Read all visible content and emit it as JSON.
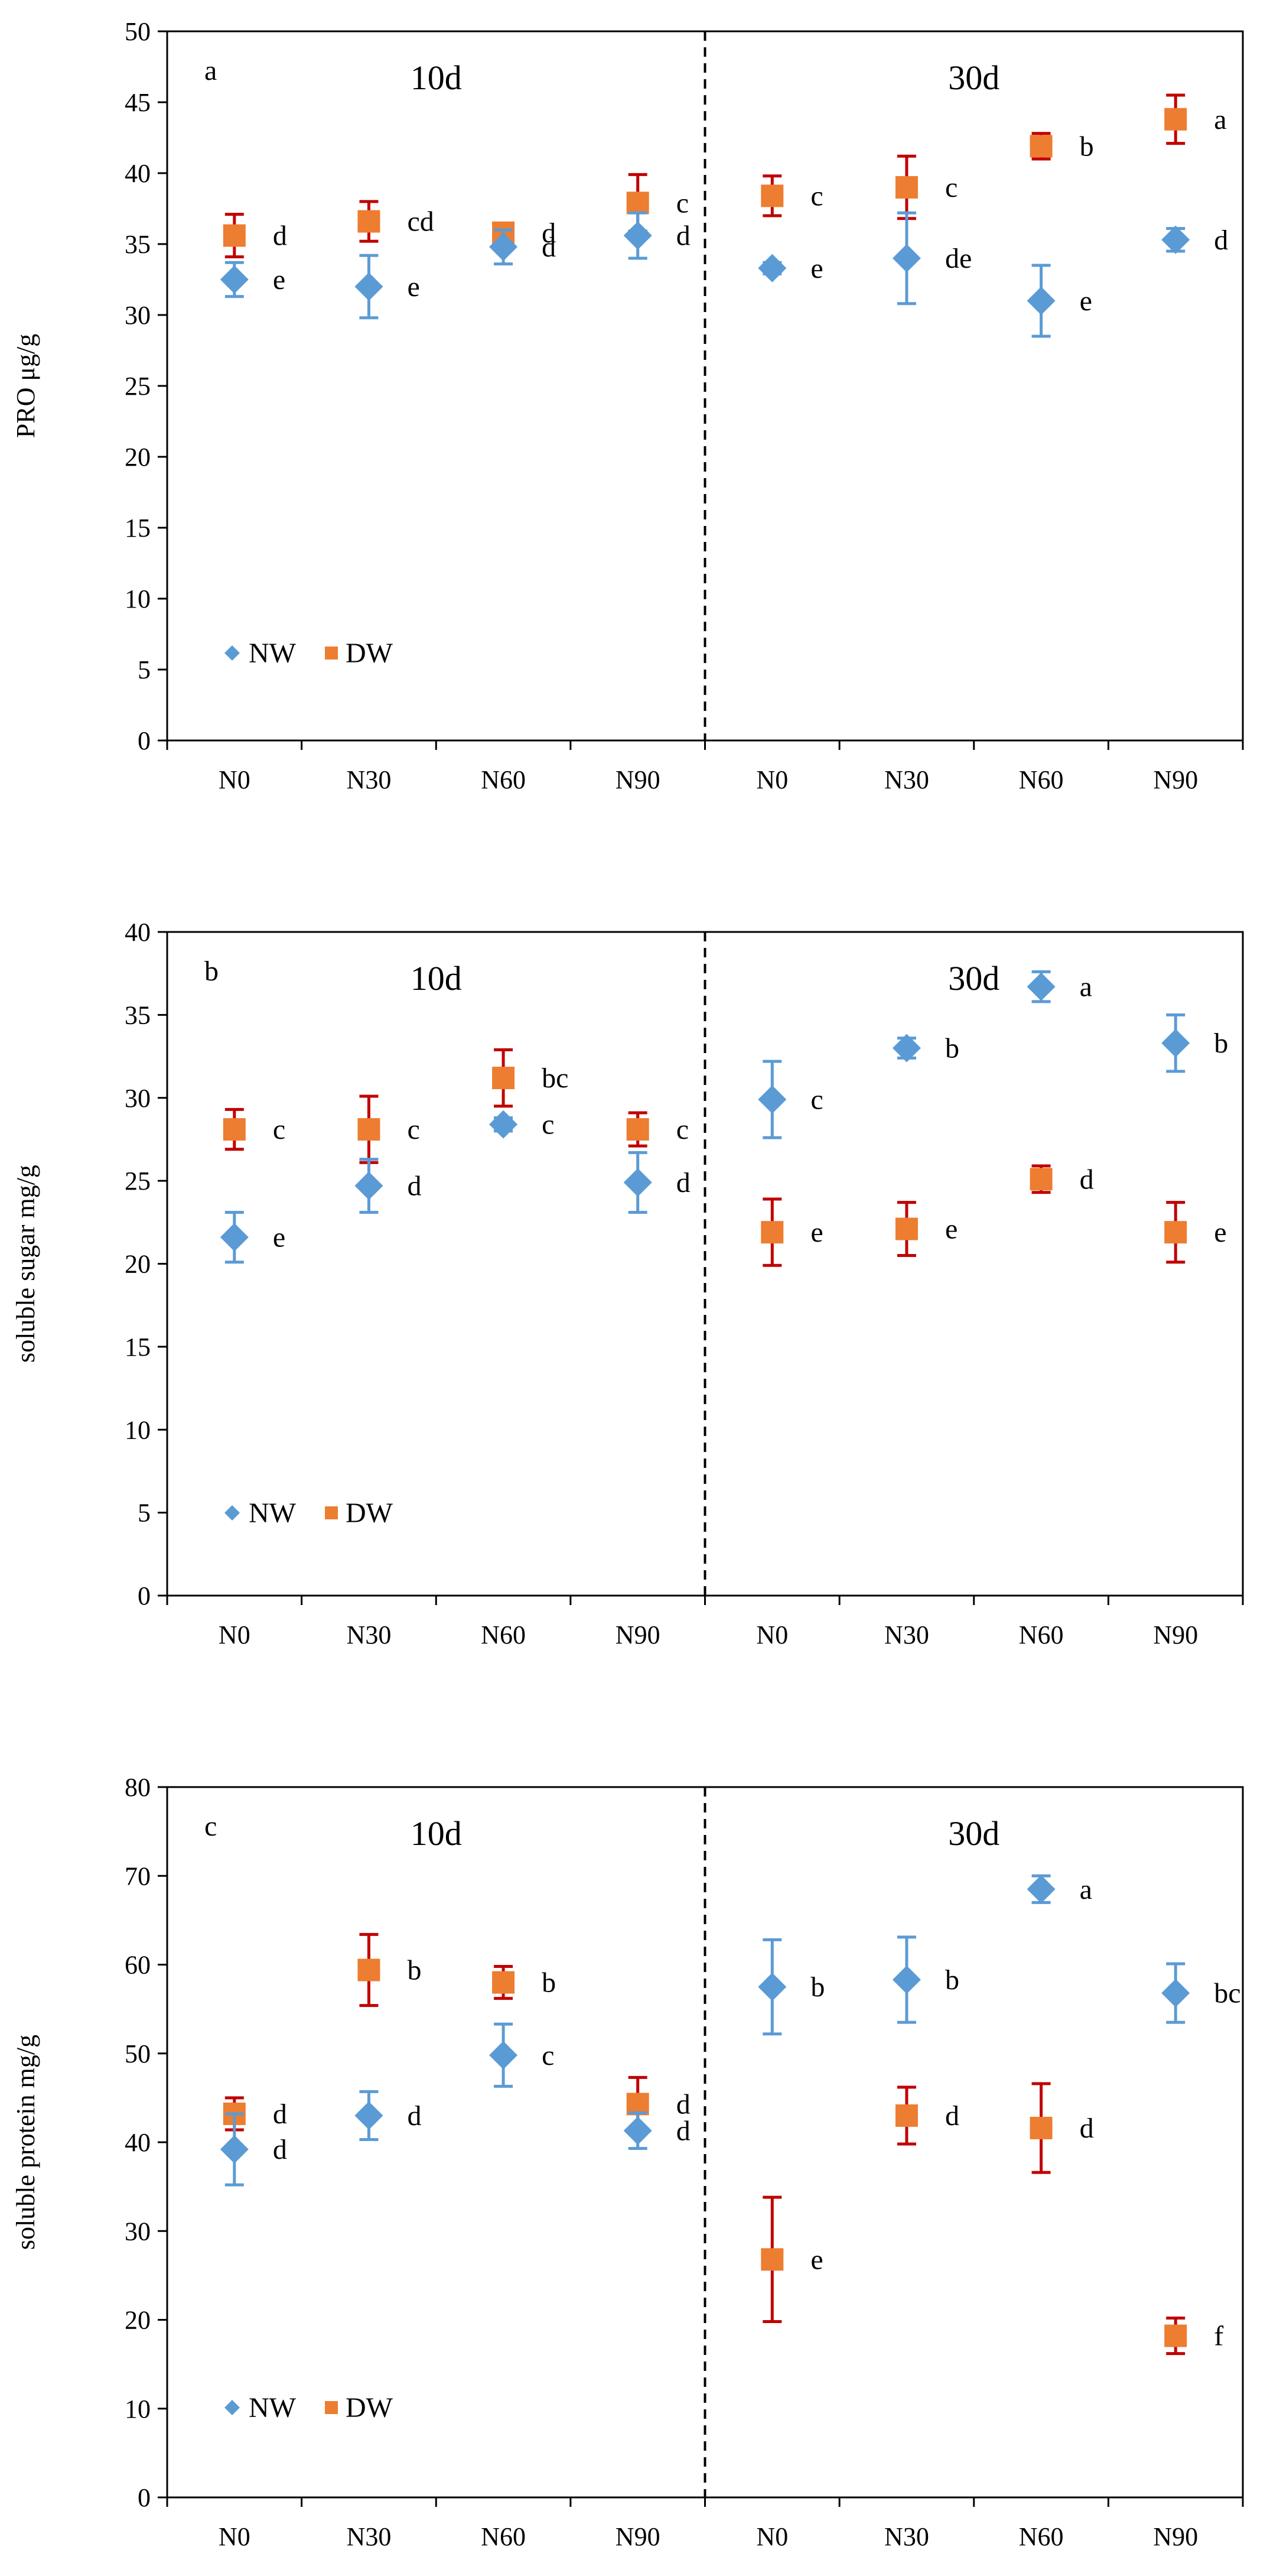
{
  "colors": {
    "NW": "#5b9bd5",
    "DW": "#ed7d31",
    "NW_err": "#5b9bd5",
    "DW_err": "#c00000"
  },
  "chart_data": [
    {
      "type": "scatter",
      "panel_letter": "a",
      "ylabel": "PRO  μg/g",
      "ylim": [
        0,
        50
      ],
      "yticks": [
        0,
        5,
        10,
        15,
        20,
        25,
        30,
        35,
        40,
        45,
        50
      ],
      "periods": [
        "10d",
        "30d"
      ],
      "categories": [
        "N0",
        "N30",
        "N60",
        "N90",
        "N0",
        "N30",
        "N60",
        "N90"
      ],
      "legend": [
        "NW",
        "DW"
      ],
      "series": [
        {
          "name": "NW",
          "values": [
            32.5,
            32.0,
            34.8,
            35.6,
            33.3,
            34.0,
            31.0,
            35.3
          ],
          "errors": [
            1.2,
            2.2,
            1.2,
            1.6,
            0.4,
            3.2,
            2.5,
            0.8
          ],
          "letters": [
            "e",
            "e",
            "d",
            "d",
            "e",
            "de",
            "e",
            "d"
          ]
        },
        {
          "name": "DW",
          "values": [
            35.6,
            36.6,
            35.8,
            37.9,
            38.4,
            39.0,
            41.9,
            43.8
          ],
          "errors": [
            1.5,
            1.4,
            0.6,
            2.0,
            1.4,
            2.2,
            0.9,
            1.7
          ],
          "letters": [
            "d",
            "cd",
            "d",
            "c",
            "c",
            "c",
            "b",
            "a"
          ]
        }
      ]
    },
    {
      "type": "scatter",
      "panel_letter": "b",
      "ylabel": "soluble sugar  mg/g",
      "ylim": [
        0,
        40
      ],
      "yticks": [
        0,
        5,
        10,
        15,
        20,
        25,
        30,
        35,
        40
      ],
      "periods": [
        "10d",
        "30d"
      ],
      "categories": [
        "N0",
        "N30",
        "N60",
        "N90",
        "N0",
        "N30",
        "N60",
        "N90"
      ],
      "legend": [
        "NW",
        "DW"
      ],
      "series": [
        {
          "name": "NW",
          "values": [
            21.6,
            24.7,
            28.4,
            24.9,
            29.9,
            33.0,
            36.7,
            33.3
          ],
          "errors": [
            1.5,
            1.6,
            0.4,
            1.8,
            2.3,
            0.6,
            0.9,
            1.7
          ],
          "letters": [
            "e",
            "d",
            "c",
            "d",
            "c",
            "b",
            "a",
            "b"
          ]
        },
        {
          "name": "DW",
          "values": [
            28.1,
            28.1,
            31.2,
            28.1,
            21.9,
            22.1,
            25.1,
            21.9
          ],
          "errors": [
            1.2,
            2.0,
            1.7,
            1.0,
            2.0,
            1.6,
            0.8,
            1.8
          ],
          "letters": [
            "c",
            "c",
            "bc",
            "c",
            "e",
            "e",
            "d",
            "e"
          ]
        }
      ]
    },
    {
      "type": "scatter",
      "panel_letter": "c",
      "ylabel": "soluble protein mg/g",
      "ylim": [
        0,
        80
      ],
      "yticks": [
        0,
        10,
        20,
        30,
        40,
        50,
        60,
        70,
        80
      ],
      "periods": [
        "10d",
        "30d"
      ],
      "categories": [
        "N0",
        "N30",
        "N60",
        "N90",
        "N0",
        "N30",
        "N60",
        "N90"
      ],
      "legend": [
        "NW",
        "DW"
      ],
      "series": [
        {
          "name": "NW",
          "values": [
            39.2,
            43.0,
            49.8,
            41.3,
            57.5,
            58.3,
            68.5,
            56.8
          ],
          "errors": [
            4.0,
            2.7,
            3.5,
            2.0,
            5.3,
            4.8,
            1.5,
            3.3
          ],
          "letters": [
            "d",
            "d",
            "c",
            "d",
            "b",
            "b",
            "a",
            "bc"
          ]
        },
        {
          "name": "DW",
          "values": [
            43.2,
            59.4,
            58.0,
            44.3,
            26.8,
            43.0,
            41.6,
            18.2
          ],
          "errors": [
            1.8,
            4.0,
            1.8,
            3.0,
            7.0,
            3.2,
            5.0,
            2.0
          ],
          "letters": [
            "d",
            "b",
            "b",
            "d",
            "e",
            "d",
            "d",
            "f"
          ]
        }
      ]
    }
  ]
}
